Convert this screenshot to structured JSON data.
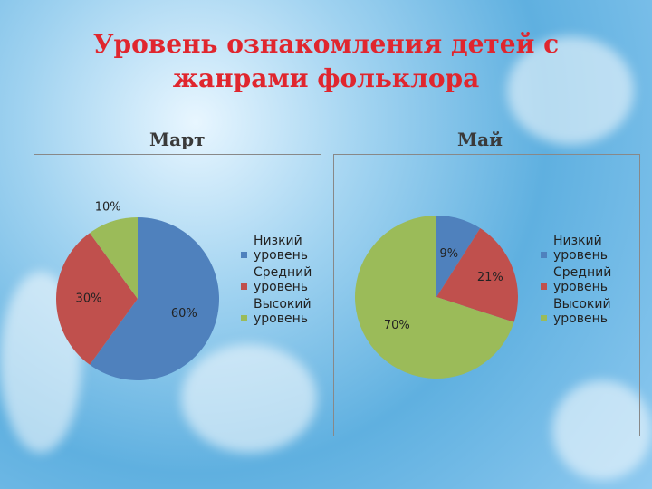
{
  "title": "Уровень ознакомления детей с жанрами фольклора",
  "chart_data": [
    {
      "type": "pie",
      "title": "Март",
      "categories": [
        "Низкий уровень",
        "Средний уровень",
        "Высокий уровень"
      ],
      "values": [
        60,
        30,
        10
      ],
      "value_labels": [
        "60%",
        "30%",
        "10%"
      ],
      "colors": [
        "#4f81bd",
        "#c0504d",
        "#9bbb59"
      ],
      "legend": "right"
    },
    {
      "type": "pie",
      "title": "Май",
      "categories": [
        "Низкий уровень",
        "Средний уровень",
        "Высокий уровень"
      ],
      "values": [
        9,
        21,
        70
      ],
      "value_labels": [
        "9%",
        "21%",
        "70%"
      ],
      "colors": [
        "#4f81bd",
        "#c0504d",
        "#9bbb59"
      ],
      "legend": "right"
    }
  ]
}
